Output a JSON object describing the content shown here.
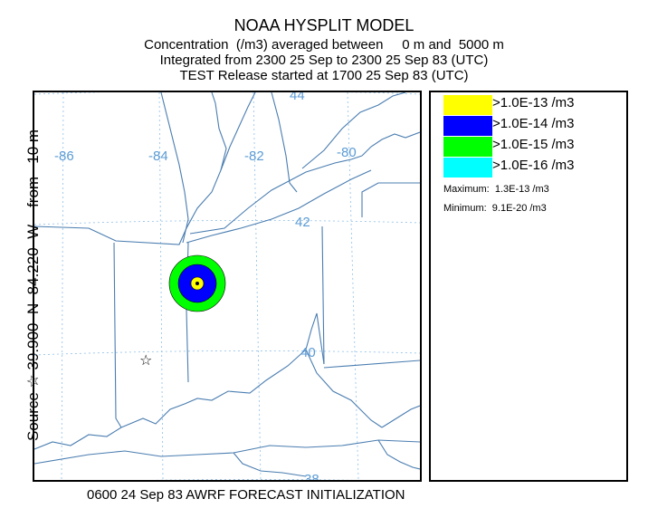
{
  "header": {
    "title": "NOAA HYSPLIT MODEL",
    "line2": "Concentration  (/m3) averaged between     0 m and  5000 m",
    "line3": "Integrated from 2300 25 Sep to 2300 25 Sep 83 (UTC)",
    "line4": "TEST Release started at 1700 25 Sep 83 (UTC)"
  },
  "side_label": "Source ☆ 39.900  N  84.220  W    from   10 m",
  "footer": "0600 24 Sep 83 AWRF FORECAST INITIALIZATION",
  "map": {
    "lon_labels": [
      "-86",
      "-84",
      "-82",
      "-80"
    ],
    "lat_labels": [
      "44",
      "42",
      "40",
      "38"
    ],
    "source_symbol": "☆"
  },
  "legend": {
    "entries": [
      {
        "label": ">1.0E-13 /m3",
        "color": "#ffff00"
      },
      {
        "label": ">1.0E-14 /m3",
        "color": "#0000ff"
      },
      {
        "label": ">1.0E-15 /m3",
        "color": "#00ff00"
      },
      {
        "label": ">1.0E-16 /m3",
        "color": "#00ffff"
      }
    ],
    "maximum": "Maximum:  1.3E-13 /m3",
    "minimum": "Minimum:  9.1E-20 /m3"
  },
  "colors": {
    "graticule": "#5b9bd5",
    "boundary": "#4a7db0",
    "plume_outer": "#00ff00",
    "plume_mid": "#0000ff",
    "plume_inner": "#ffff00"
  }
}
